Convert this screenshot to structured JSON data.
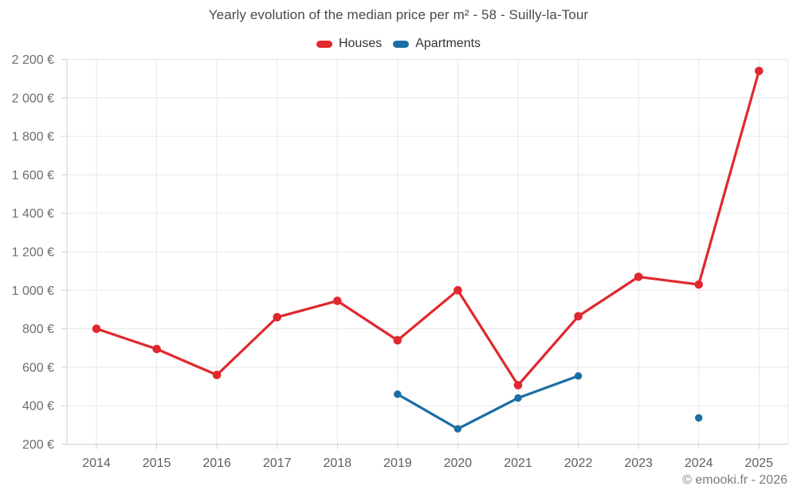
{
  "chart_data": {
    "type": "line",
    "title": "Yearly evolution of the median price per m² - 58 - Suilly-la-Tour",
    "categories": [
      "2014",
      "2015",
      "2016",
      "2017",
      "2018",
      "2019",
      "2020",
      "2021",
      "2022",
      "2023",
      "2024",
      "2025"
    ],
    "series": [
      {
        "name": "Houses",
        "color": "#e0282e",
        "marker_radius": 5.3,
        "values": [
          800,
          695,
          560,
          860,
          945,
          740,
          1000,
          507,
          865,
          1070,
          1030,
          2140
        ]
      },
      {
        "name": "Apartments",
        "color": "#1c6ea4",
        "marker_radius": 4.7,
        "values": [
          null,
          null,
          null,
          null,
          null,
          460,
          280,
          440,
          555,
          null,
          337,
          null
        ]
      }
    ],
    "xlabel": "",
    "ylabel": "",
    "ylim": [
      200,
      2200
    ],
    "ytick_step": 200,
    "ytick_labels": [
      "200 €",
      "400 €",
      "600 €",
      "800 €",
      "1 000 €",
      "1 200 €",
      "1 400 €",
      "1 600 €",
      "1 800 €",
      "2 000 €",
      "2 200 €"
    ],
    "currency_suffix": " €",
    "grid": true,
    "legend_position": "top"
  },
  "footer": {
    "credit": "© emooki.fr - 2026"
  }
}
